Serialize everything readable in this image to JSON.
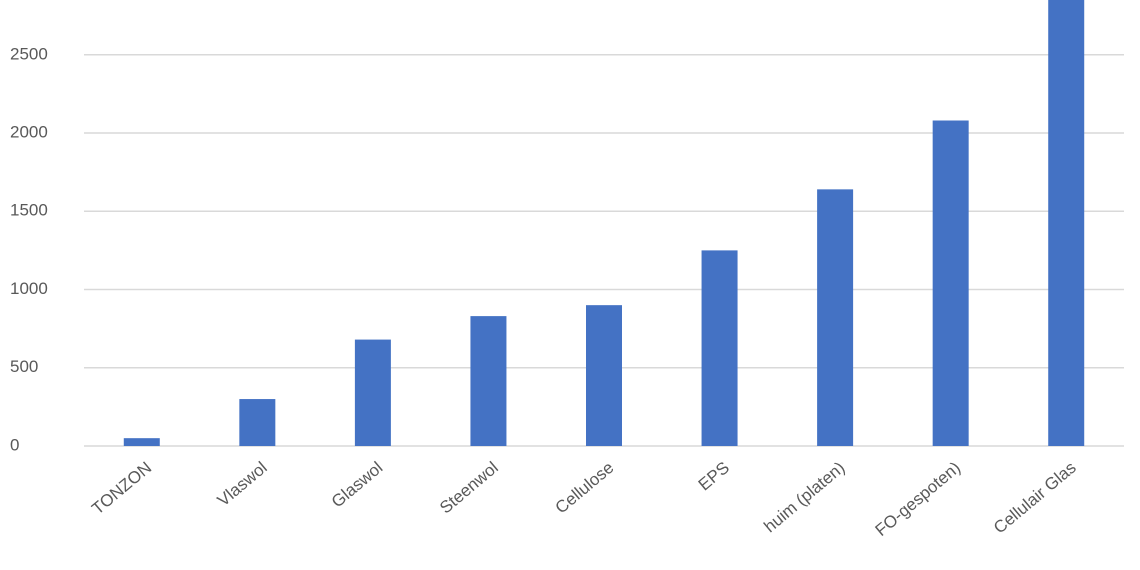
{
  "chart_data": {
    "type": "bar",
    "categories": [
      "TONZON",
      "Vlaswol",
      "Glaswol",
      "Steenwol",
      "Cellulose",
      "EPS",
      "huim (platen)",
      "FO-gespoten)",
      "Cellulair Glas"
    ],
    "values": [
      50,
      300,
      680,
      830,
      900,
      1250,
      1640,
      2080,
      2850
    ],
    "color": "#4472c4",
    "ylim": [
      0,
      2850
    ],
    "yticks": [
      0,
      500,
      1000,
      1500,
      2000,
      2500
    ],
    "grid": true
  }
}
